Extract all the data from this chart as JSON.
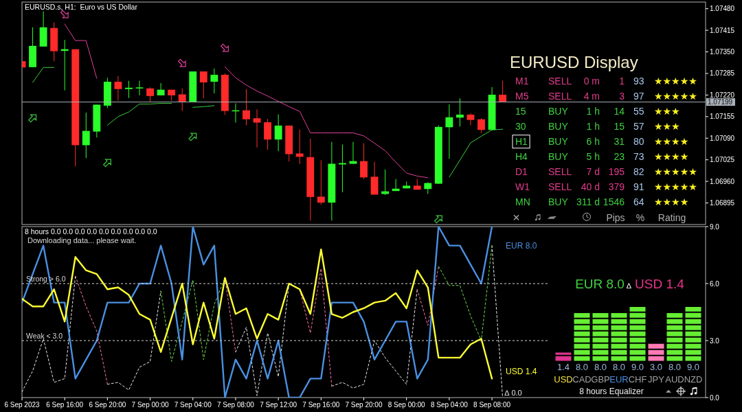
{
  "chart_data": [
    {
      "type": "candlestick",
      "title": "EURUSD.s, H1:  Euro vs US Dollar",
      "x": [
        "2023-09-06T12:00",
        "2023-09-06T13:00",
        "2023-09-06T14:00",
        "2023-09-06T15:00",
        "2023-09-06T16:00",
        "2023-09-06T17:00",
        "2023-09-06T18:00",
        "2023-09-06T19:00",
        "2023-09-06T20:00",
        "2023-09-06T21:00",
        "2023-09-06T22:00",
        "2023-09-06T23:00",
        "2023-09-07T00:00",
        "2023-09-07T01:00",
        "2023-09-07T02:00",
        "2023-09-07T03:00",
        "2023-09-07T04:00",
        "2023-09-07T05:00",
        "2023-09-07T06:00",
        "2023-09-07T07:00",
        "2023-09-07T08:00",
        "2023-09-07T09:00",
        "2023-09-07T10:00",
        "2023-09-07T11:00",
        "2023-09-07T12:00",
        "2023-09-07T13:00",
        "2023-09-07T14:00",
        "2023-09-07T15:00",
        "2023-09-07T16:00",
        "2023-09-07T17:00",
        "2023-09-07T18:00",
        "2023-09-07T19:00",
        "2023-09-07T20:00",
        "2023-09-07T21:00",
        "2023-09-07T22:00",
        "2023-09-07T23:00",
        "2023-09-08T00:00",
        "2023-09-08T01:00",
        "2023-09-08T02:00",
        "2023-09-08T03:00",
        "2023-09-08T04:00",
        "2023-09-08T05:00",
        "2023-09-08T06:00",
        "2023-09-08T07:00",
        "2023-09-08T08:00",
        "2023-09-08T09:00"
      ],
      "ohlc": [
        [
          1.07322,
          1.07322,
          1.07303,
          1.07303
        ],
        [
          1.07304,
          1.07424,
          1.07304,
          1.07368
        ],
        [
          1.07366,
          1.07472,
          1.07366,
          1.07424
        ],
        [
          1.07422,
          1.07439,
          1.07322,
          1.07352
        ],
        [
          1.07353,
          1.07386,
          1.07234,
          1.07358
        ],
        [
          1.07358,
          1.07358,
          1.07005,
          1.07069
        ],
        [
          1.07069,
          1.07167,
          1.0703,
          1.07112
        ],
        [
          1.0711,
          1.07191,
          1.07092,
          1.07191
        ],
        [
          1.07188,
          1.07272,
          1.07181,
          1.0726
        ],
        [
          1.0726,
          1.07277,
          1.07203,
          1.07238
        ],
        [
          1.07238,
          1.07263,
          1.07211,
          1.07242
        ],
        [
          1.0724,
          1.07263,
          1.07219,
          1.07243
        ],
        [
          1.0724,
          1.07243,
          1.072,
          1.07217
        ],
        [
          1.07219,
          1.07256,
          1.07219,
          1.07236
        ],
        [
          1.07236,
          1.07236,
          1.07203,
          1.07219
        ],
        [
          1.07222,
          1.0724,
          1.07172,
          1.072
        ],
        [
          1.072,
          1.07291,
          1.072,
          1.07291
        ],
        [
          1.07291,
          1.07291,
          1.0721,
          1.07258
        ],
        [
          1.0726,
          1.073,
          1.07225,
          1.07281
        ],
        [
          1.07281,
          1.07285,
          1.0716,
          1.07172
        ],
        [
          1.07172,
          1.07195,
          1.07137,
          1.07174
        ],
        [
          1.07174,
          1.07238,
          1.07129,
          1.07147
        ],
        [
          1.0715,
          1.07177,
          1.07062,
          1.07137
        ],
        [
          1.07138,
          1.07148,
          1.07055,
          1.07086
        ],
        [
          1.07086,
          1.07162,
          1.07051,
          1.07128
        ],
        [
          1.07128,
          1.07128,
          1.0702,
          1.07042
        ],
        [
          1.07044,
          1.07116,
          1.07012,
          1.07034
        ],
        [
          1.07033,
          1.07089,
          1.06842,
          1.06913
        ],
        [
          1.06914,
          1.07024,
          1.0689,
          1.06896
        ],
        [
          1.06896,
          1.07079,
          1.06842,
          1.07013
        ],
        [
          1.07011,
          1.07071,
          1.06927,
          1.07015
        ],
        [
          1.07013,
          1.07079,
          1.07012,
          1.07021
        ],
        [
          1.07021,
          1.07075,
          1.06967,
          1.06972
        ],
        [
          1.06974,
          1.07019,
          1.0692,
          1.0692
        ],
        [
          1.06922,
          1.06996,
          1.06919,
          1.0693
        ],
        [
          1.06931,
          1.06967,
          1.06931,
          1.06938
        ],
        [
          1.06939,
          1.06959,
          1.06939,
          1.06947
        ],
        [
          1.06947,
          1.06967,
          1.06935,
          1.06935
        ],
        [
          1.06937,
          1.06957,
          1.06922,
          1.06955
        ],
        [
          1.06953,
          1.07129,
          1.06952,
          1.07124
        ],
        [
          1.07123,
          1.07192,
          1.07028,
          1.07153
        ],
        [
          1.07152,
          1.0721,
          1.07125,
          1.07161
        ],
        [
          1.07161,
          1.07165,
          1.07129,
          1.07145
        ],
        [
          1.07147,
          1.0715,
          1.07106,
          1.07115
        ],
        [
          1.07115,
          1.07244,
          1.07115,
          1.07221
        ],
        [
          1.07221,
          1.07263,
          1.07199,
          1.07199
        ]
      ],
      "colors": [
        "#ff2a2a",
        "#2aff2a",
        "#2aff2a",
        "#ff2a2a",
        "#2aff2a",
        "#ff2a2a",
        "#2aff2a",
        "#2aff2a",
        "#2aff2a",
        "#ff2a2a",
        "#2aff2a",
        "#2aff2a",
        "#ff2a2a",
        "#2aff2a",
        "#ff2a2a",
        "#ff2a2a",
        "#2aff2a",
        "#ff2a2a",
        "#2aff2a",
        "#ff2a2a",
        "#2aff2a",
        "#ff2a2a",
        "#ff2a2a",
        "#ff2a2a",
        "#2aff2a",
        "#ff2a2a",
        "#ff2a2a",
        "#ff2a2a",
        "#ff2a2a",
        "#2aff2a",
        "#2aff2a",
        "#2aff2a",
        "#ff2a2a",
        "#ff2a2a",
        "#2aff2a",
        "#2aff2a",
        "#2aff2a",
        "#ff2a2a",
        "#2aff2a",
        "#2aff2a",
        "#2aff2a",
        "#2aff2a",
        "#ff2a2a",
        "#ff2a2a",
        "#2aff2a",
        "#ff2a2a"
      ],
      "series": [
        {
          "type": "line",
          "color": "#e0409a",
          "values": [
            null,
            null,
            null,
            null,
            1.07434,
            1.07384,
            1.07384,
            1.0727,
            null,
            null,
            null,
            null,
            null,
            null,
            null,
            null,
            null,
            null,
            null,
            1.07305,
            1.07272,
            1.0725,
            1.07232,
            1.07217,
            1.07201,
            1.07185,
            1.07171,
            1.07106,
            1.07106,
            1.07106,
            1.07106,
            1.07106,
            1.07097,
            1.07075,
            1.07052,
            1.07018,
            1.06985,
            1.06976,
            1.06971,
            null,
            null,
            null,
            null,
            null,
            null,
            null
          ]
        },
        {
          "type": "line",
          "color": "#3ccc3c",
          "values": [
            null,
            1.07258,
            1.07303,
            1.07303,
            null,
            null,
            null,
            null,
            1.07129,
            1.07155,
            1.07169,
            1.07193,
            1.07193,
            1.07195,
            1.07195,
            null,
            1.07183,
            1.07185,
            1.07188,
            null,
            null,
            null,
            null,
            null,
            null,
            null,
            null,
            null,
            null,
            null,
            null,
            null,
            null,
            null,
            null,
            null,
            null,
            null,
            null,
            null,
            1.06973,
            1.07024,
            1.07076,
            1.07096,
            1.07115,
            1.07117
          ]
        }
      ],
      "xlim": [
        "2023-09-06T12:00",
        "2023-09-09T04:00"
      ],
      "ylim": [
        1.0683,
        1.075
      ],
      "yticks": [
        {
          "value": 1.0748,
          "label": "1.07480"
        },
        1.07415,
        {
          "value": 1.0735,
          "label": "1.07350"
        },
        1.07285,
        {
          "value": 1.0722,
          "label": "1.07220"
        },
        1.07155,
        {
          "value": 1.0709,
          "label": "1.07090"
        },
        1.07025,
        {
          "value": 1.0696,
          "label": "1.06960"
        },
        1.06895
      ],
      "ref_lines": [
        {
          "axis": "y",
          "value": 1.07199,
          "label": "1.07199",
          "color": "#a8b0b8"
        }
      ],
      "tick_labels": "y"
    },
    {
      "type": "other",
      "title": "EURUSD Display",
      "annotations": [
        "M1",
        "SELL",
        "0 m",
        "1",
        "93",
        "★★★★★",
        "M5",
        "SELL",
        "4 m",
        "3",
        "97",
        "★★★★★",
        "15",
        "BUY",
        "1 h",
        "14",
        "55",
        "★★★",
        "30",
        "BUY",
        "1 h",
        "15",
        "57",
        "★★★",
        "H1",
        "BUY",
        "6 h",
        "31",
        "80",
        "★★★★",
        "H4",
        "BUY",
        "5 h",
        "23",
        "73",
        "★★★★",
        "D1",
        "SELL",
        "7 d",
        "195",
        "82",
        "★★★★★",
        "W1",
        "SELL",
        "40 d",
        "379",
        "91",
        "★★★★★",
        "MN",
        "BUY",
        "311 d",
        "1546",
        "64",
        "★★★★",
        "Pips",
        "%",
        "Rating"
      ],
      "colors": [
        "#e23c8c",
        "#e23c8c",
        "#e23c8c",
        "#e23c8c",
        "#a8c8ec",
        "#f8f020",
        "#e23c8c",
        "#e23c8c",
        "#e23c8c",
        "#e23c8c",
        "#a8c8ec",
        "#f8f020",
        "#3fd03f",
        "#3fd03f",
        "#3fd03f",
        "#3fd03f",
        "#a8c8ec",
        "#f8f020",
        "#3fd03f",
        "#3fd03f",
        "#3fd03f",
        "#3fd03f",
        "#a8c8ec",
        "#f8f020",
        "#3fd03f",
        "#3fd03f",
        "#3fd03f",
        "#3fd03f",
        "#a8c8ec",
        "#f8f020",
        "#3fd03f",
        "#3fd03f",
        "#3fd03f",
        "#3fd03f",
        "#a8c8ec",
        "#f8f020",
        "#e23c8c",
        "#e23c8c",
        "#e23c8c",
        "#e23c8c",
        "#a8c8ec",
        "#f8f020",
        "#e23c8c",
        "#e23c8c",
        "#e23c8c",
        "#e23c8c",
        "#a8c8ec",
        "#f8f020",
        "#3fd03f",
        "#3fd03f",
        "#3fd03f",
        "#3fd03f",
        "#a8c8ec",
        "#f8f020",
        "#b0b0b0",
        "#b0b0b0",
        "#b0b0b0"
      ]
    },
    {
      "type": "line",
      "title": "8 hours 0.0 0.0 0.0 0.0 0.0 0.0 0.0 0.0 0.0",
      "subtitle": "Downloading data... please wait.",
      "x": [
        "2023-09-06T12:00",
        "2023-09-06T13:00",
        "2023-09-06T14:00",
        "2023-09-06T15:00",
        "2023-09-06T16:00",
        "2023-09-06T17:00",
        "2023-09-06T18:00",
        "2023-09-06T19:00",
        "2023-09-06T20:00",
        "2023-09-06T21:00",
        "2023-09-06T22:00",
        "2023-09-06T23:00",
        "2023-09-07T00:00",
        "2023-09-07T01:00",
        "2023-09-07T02:00",
        "2023-09-07T03:00",
        "2023-09-07T04:00",
        "2023-09-07T05:00",
        "2023-09-07T06:00",
        "2023-09-07T07:00",
        "2023-09-07T08:00",
        "2023-09-07T09:00",
        "2023-09-07T10:00",
        "2023-09-07T11:00",
        "2023-09-07T12:00",
        "2023-09-07T13:00",
        "2023-09-07T14:00",
        "2023-09-07T15:00",
        "2023-09-07T16:00",
        "2023-09-07T17:00",
        "2023-09-07T18:00",
        "2023-09-07T19:00",
        "2023-09-07T20:00",
        "2023-09-07T21:00",
        "2023-09-07T22:00",
        "2023-09-07T23:00",
        "2023-09-08T00:00",
        "2023-09-08T01:00",
        "2023-09-08T02:00",
        "2023-09-08T03:00",
        "2023-09-08T04:00",
        "2023-09-08T05:00",
        "2023-09-08T06:00",
        "2023-09-08T07:00",
        "2023-09-08T08:00",
        "2023-09-08T09:00"
      ],
      "series": [
        {
          "color": "#e8e8e8",
          "line_style": "dashed",
          "values": [
            0.3,
            1.4,
            3.1,
            0.8,
            1.0,
            6.4,
            null,
            null,
            0.7,
            0.8,
            0.4,
            1.6,
            1.9,
            5.6,
            null,
            null,
            null,
            null,
            null,
            null,
            2.4,
            3.7,
            0.1,
            3.4,
            1.1,
            6.0,
            null,
            null,
            null,
            0.6,
            0.8,
            0.5,
            0.7,
            3.0,
            2.1,
            1.4,
            0.7,
            5.7,
            null,
            null,
            null,
            null,
            null,
            null,
            8.0,
            0.0
          ]
        },
        {
          "color": "#ff70a8",
          "line_style": "dashed",
          "values": [
            null,
            null,
            null,
            null,
            null,
            6.4,
            4.8,
            3.5,
            0.7,
            null,
            null,
            null,
            null,
            null,
            null,
            null,
            null,
            null,
            null,
            6.3,
            2.4,
            null,
            null,
            null,
            null,
            6.0,
            5.7,
            3.4,
            6.8,
            0.6,
            null,
            null,
            null,
            null,
            null,
            null,
            null,
            5.7,
            3.8,
            6.9,
            null,
            null,
            null,
            null,
            null,
            null
          ]
        },
        {
          "color": "#66dd44",
          "line_style": "dashed",
          "values": [
            null,
            null,
            null,
            null,
            null,
            null,
            null,
            null,
            null,
            null,
            null,
            null,
            null,
            5.6,
            1.9,
            4.0,
            6.2,
            2.0,
            4.9,
            6.3,
            null,
            null,
            null,
            null,
            null,
            null,
            null,
            null,
            null,
            null,
            null,
            null,
            null,
            null,
            null,
            null,
            null,
            null,
            null,
            6.9,
            5.9,
            5.9,
            4.3,
            3.0,
            8.0,
            null
          ]
        },
        {
          "name": "EUR 8.0",
          "color": "#4a90e2",
          "values": [
            5.0,
            6.5,
            8.0,
            5.0,
            5.0,
            1.0,
            2.0,
            3.0,
            5.0,
            5.0,
            5.0,
            6.0,
            6.0,
            8.0,
            6.0,
            2.0,
            9.0,
            7.0,
            8.0,
            0.0,
            2.0,
            1.0,
            3.0,
            1.0,
            3.0,
            0.0,
            0.0,
            1.0,
            1.0,
            5.0,
            5.0,
            5.0,
            4.0,
            2.0,
            3.0,
            4.0,
            4.0,
            1.0,
            2.0,
            9.0,
            8.0,
            8.0,
            7.0,
            6.0,
            9.0,
            null
          ]
        },
        {
          "name": "USD 1.4",
          "color": "#ffff33",
          "values": [
            5.2,
            4.8,
            4.8,
            5.7,
            4.0,
            7.4,
            6.7,
            6.5,
            5.7,
            5.8,
            5.4,
            4.4,
            4.1,
            2.4,
            4.2,
            6.0,
            2.8,
            5.0,
            3.1,
            6.3,
            4.4,
            4.7,
            3.1,
            4.4,
            4.1,
            6.0,
            5.7,
            4.4,
            7.8,
            4.4,
            4.2,
            4.5,
            4.7,
            5.0,
            5.1,
            5.5,
            4.7,
            6.7,
            5.8,
            2.1,
            2.1,
            2.1,
            2.8,
            3.1,
            1.0,
            null
          ]
        }
      ],
      "xlim": [
        "2023-09-06T12:00",
        "2023-09-09T04:00"
      ],
      "xticks": [
        {
          "value": "2023-09-06T12:00",
          "label": "6 Sep 2023"
        },
        {
          "value": "2023-09-06T16:00",
          "label": "6 Sep 16:00"
        },
        {
          "value": "2023-09-06T20:00",
          "label": "6 Sep 20:00"
        },
        {
          "value": "2023-09-07T00:00",
          "label": "7 Sep 00:00"
        },
        {
          "value": "2023-09-07T04:00",
          "label": "7 Sep 04:00"
        },
        {
          "value": "2023-09-07T08:00",
          "label": "7 Sep 08:00"
        },
        {
          "value": "2023-09-07T12:00",
          "label": "7 Sep 12:00"
        },
        {
          "value": "2023-09-07T16:00",
          "label": "7 Sep 16:00"
        },
        {
          "value": "2023-09-07T20:00",
          "label": "7 Sep 20:00"
        },
        {
          "value": "2023-09-08T00:00",
          "label": "8 Sep 00:00"
        },
        {
          "value": "2023-09-08T04:00",
          "label": "8 Sep 04:00"
        },
        {
          "value": "2023-09-08T08:00",
          "label": "8 Sep 08:00"
        }
      ],
      "ylim": [
        0,
        9
      ],
      "yticks": [
        {
          "value": 9,
          "label": "9.0"
        },
        {
          "value": 6,
          "label": "6.0"
        },
        {
          "value": 3,
          "label": "3.0"
        },
        {
          "value": 0,
          "label": "0.0"
        }
      ],
      "ref_lines": [
        {
          "axis": "y",
          "value": 6,
          "label": "Strong > 6.0",
          "color": "#d8d8d8",
          "line_style": "dashed"
        },
        {
          "axis": "y",
          "value": 3,
          "label": "Weak < 3.0",
          "color": "#d8d8d8",
          "line_style": "dashed"
        }
      ],
      "annotations": [
        {
          "text": "∆ 0.0",
          "x": "2023-09-08T09:00",
          "y": 0
        }
      ]
    },
    {
      "type": "bar",
      "title": "EUR 8.0 ∆ USD 1.4",
      "categories": [
        "USD",
        "CAD",
        "GBP",
        "EUR",
        "CHF",
        "JPY",
        "AUD",
        "NZD"
      ],
      "values": [
        1.4,
        8.0,
        8.0,
        8.0,
        9.0,
        3.0,
        8.0,
        9.0
      ],
      "value_labels": [
        "1.4",
        "8.0",
        "8.0",
        "8.0",
        "9.0",
        "3.0",
        "8.0",
        "9.0"
      ],
      "colors": [
        "#e0338f",
        "#66ee33",
        "#66ee33",
        "#66ee33",
        "#66ee33",
        "#ff7ab4",
        "#66ee33",
        "#66ee33"
      ],
      "annotations": [
        "8 hours Equalizer"
      ]
    }
  ]
}
